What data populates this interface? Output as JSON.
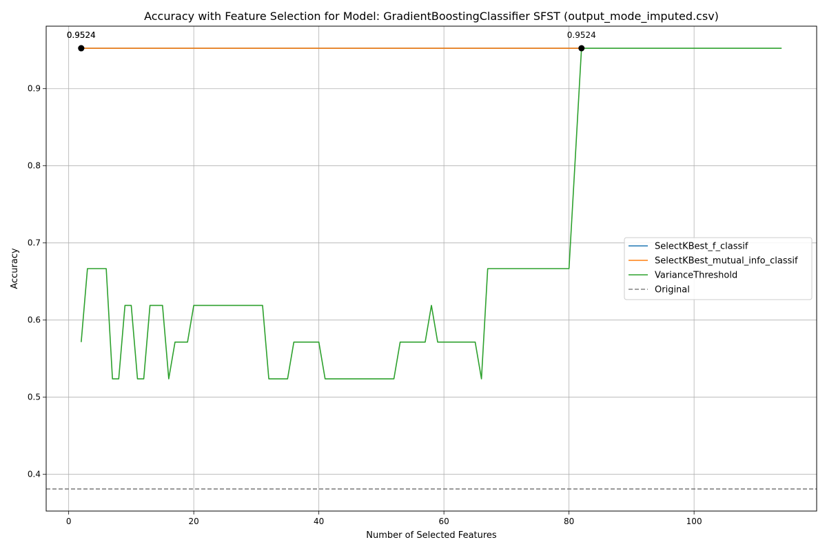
{
  "chart_data": {
    "type": "line",
    "title": "Accuracy with Feature Selection for Model: GradientBoostingClassifier SFST (output_mode_imputed.csv)",
    "xlabel": "Number of Selected Features",
    "ylabel": "Accuracy",
    "xlim": [
      -3.6,
      119.6
    ],
    "ylim": [
      0.3524,
      0.981
    ],
    "xticks": [
      0,
      20,
      40,
      60,
      80,
      100
    ],
    "yticks": [
      0.4,
      0.5,
      0.6,
      0.7,
      0.8,
      0.9
    ],
    "grid": true,
    "legend_position": "center-right",
    "series": [
      {
        "name": "SelectKBest_f_classif",
        "color": "#1f77b4",
        "x": [
          2,
          82
        ],
        "y": [
          0.9524,
          0.9524
        ],
        "style": "solid"
      },
      {
        "name": "SelectKBest_mutual_info_classif",
        "color": "#ff7f0e",
        "x": [
          2,
          82
        ],
        "y": [
          0.9524,
          0.9524
        ],
        "style": "solid"
      },
      {
        "name": "VarianceThreshold",
        "color": "#2ca02c",
        "style": "solid",
        "x": [
          2,
          3,
          4,
          5,
          6,
          7,
          8,
          9,
          10,
          11,
          12,
          13,
          14,
          15,
          16,
          17,
          18,
          19,
          20,
          21,
          22,
          23,
          24,
          25,
          26,
          27,
          28,
          29,
          30,
          31,
          32,
          33,
          34,
          35,
          36,
          37,
          38,
          39,
          40,
          41,
          42,
          43,
          44,
          45,
          46,
          47,
          48,
          49,
          50,
          51,
          52,
          53,
          54,
          55,
          56,
          57,
          58,
          59,
          60,
          61,
          62,
          63,
          64,
          65,
          66,
          67,
          68,
          69,
          70,
          71,
          72,
          73,
          74,
          75,
          76,
          77,
          78,
          79,
          80,
          81,
          82,
          83,
          84,
          85,
          86,
          87,
          88,
          89,
          90,
          91,
          92,
          93,
          94,
          95,
          96,
          97,
          98,
          99,
          100,
          101,
          102,
          103,
          104,
          105,
          106,
          107,
          108,
          109,
          110,
          111,
          112,
          113,
          114
        ],
        "y": [
          0.5714,
          0.6667,
          0.6667,
          0.6667,
          0.6667,
          0.5238,
          0.5238,
          0.619,
          0.619,
          0.5238,
          0.5238,
          0.619,
          0.619,
          0.619,
          0.5238,
          0.5714,
          0.5714,
          0.5714,
          0.619,
          0.619,
          0.619,
          0.619,
          0.619,
          0.619,
          0.619,
          0.619,
          0.619,
          0.619,
          0.619,
          0.619,
          0.5238,
          0.5238,
          0.5238,
          0.5238,
          0.5714,
          0.5714,
          0.5714,
          0.5714,
          0.5714,
          0.5238,
          0.5238,
          0.5238,
          0.5238,
          0.5238,
          0.5238,
          0.5238,
          0.5238,
          0.5238,
          0.5238,
          0.5238,
          0.5238,
          0.5714,
          0.5714,
          0.5714,
          0.5714,
          0.5714,
          0.619,
          0.5714,
          0.5714,
          0.5714,
          0.5714,
          0.5714,
          0.5714,
          0.5714,
          0.5238,
          0.6667,
          0.6667,
          0.6667,
          0.6667,
          0.6667,
          0.6667,
          0.6667,
          0.6667,
          0.6667,
          0.6667,
          0.6667,
          0.6667,
          0.6667,
          0.6667,
          0.8095,
          0.9524,
          0.9524,
          0.9524,
          0.9524,
          0.9524,
          0.9524,
          0.9524,
          0.9524,
          0.9524,
          0.9524,
          0.9524,
          0.9524,
          0.9524,
          0.9524,
          0.9524,
          0.9524,
          0.9524,
          0.9524,
          0.9524,
          0.9524,
          0.9524,
          0.9524,
          0.9524,
          0.9524,
          0.9524,
          0.9524,
          0.9524,
          0.9524,
          0.9524,
          0.9524,
          0.9524,
          0.9524,
          0.9524
        ]
      },
      {
        "name": "Original",
        "color": "#808080",
        "style": "dashed",
        "hline": 0.381
      }
    ],
    "markers": [
      {
        "x": 2,
        "y": 0.9524,
        "label": "0.9524"
      },
      {
        "x": 2,
        "y": 0.9524,
        "label": "0.9524"
      },
      {
        "x": 82,
        "y": 0.9524,
        "label": "0.9524"
      }
    ]
  }
}
